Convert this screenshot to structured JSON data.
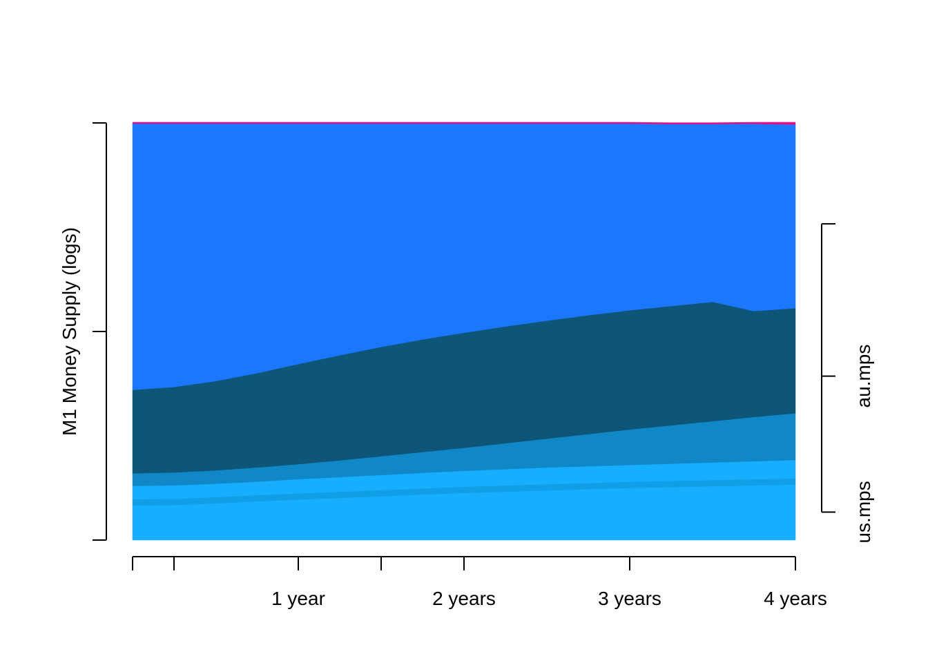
{
  "chart_data": {
    "type": "area",
    "stacked": true,
    "title": "",
    "xlabel": "",
    "ylabel": "M1 Money Supply (logs)",
    "x": [
      0,
      0.25,
      0.5,
      0.75,
      1.0,
      1.25,
      1.5,
      1.75,
      2.0,
      2.25,
      2.5,
      2.75,
      3.0,
      3.25,
      3.5,
      3.75,
      4.0
    ],
    "xlim": [
      0,
      4
    ],
    "x_ticks": [
      0,
      0.25,
      1,
      1.5,
      2,
      3,
      4
    ],
    "x_tick_labels": [
      {
        "x": 1,
        "label": "1 year"
      },
      {
        "x": 2,
        "label": "2 years"
      },
      {
        "x": 3,
        "label": "3 years"
      },
      {
        "x": 4,
        "label": "4 years"
      }
    ],
    "ylim": [
      0,
      1
    ],
    "y_ticks": [
      0,
      0.5,
      1
    ],
    "right_axis": {
      "tick_labels": [
        {
          "y": 0.067,
          "label": "us.mps"
        },
        {
          "y": 0.393,
          "label": "au.mps"
        }
      ],
      "range": [
        0.067,
        0.758
      ]
    },
    "grid": false,
    "legend": "none",
    "series": [
      {
        "color": "#18aeff",
        "values": [
          0.13,
          0.131,
          0.135,
          0.14,
          0.146,
          0.151,
          0.156,
          0.161,
          0.166,
          0.17,
          0.174,
          0.177,
          0.18,
          0.183,
          0.186,
          0.189,
          0.192
        ]
      },
      {
        "color": "#1088c8",
        "values": [
          0.03,
          0.031,
          0.032,
          0.034,
          0.036,
          0.04,
          0.045,
          0.05,
          0.055,
          0.062,
          0.069,
          0.077,
          0.085,
          0.092,
          0.099,
          0.106,
          0.112
        ]
      },
      {
        "color": "#0d5677",
        "values": [
          0.2,
          0.205,
          0.214,
          0.226,
          0.24,
          0.252,
          0.262,
          0.27,
          0.276,
          0.28,
          0.283,
          0.285,
          0.286,
          0.286,
          0.286,
          0.254,
          0.252
        ]
      },
      {
        "color": "#1c77ff",
        "values": [
          0.64,
          0.633,
          0.619,
          0.6,
          0.578,
          0.557,
          0.537,
          0.519,
          0.503,
          0.488,
          0.474,
          0.461,
          0.449,
          0.438,
          0.428,
          0.449,
          0.44
        ]
      },
      {
        "color": "#ea0e86",
        "values": [
          0.0,
          0.0,
          0.0,
          0.0,
          0.0,
          0.0,
          0.0,
          0.0,
          0.0,
          0.0,
          0.0,
          0.0,
          0.0,
          0.0,
          0.0,
          0.002,
          0.004
        ]
      }
    ],
    "overlay_line": {
      "color": "#109fe6",
      "values": [
        0.09,
        0.091,
        0.095,
        0.1,
        0.104,
        0.108,
        0.112,
        0.116,
        0.12,
        0.123,
        0.126,
        0.129,
        0.132,
        0.134,
        0.136,
        0.138,
        0.14
      ]
    }
  }
}
